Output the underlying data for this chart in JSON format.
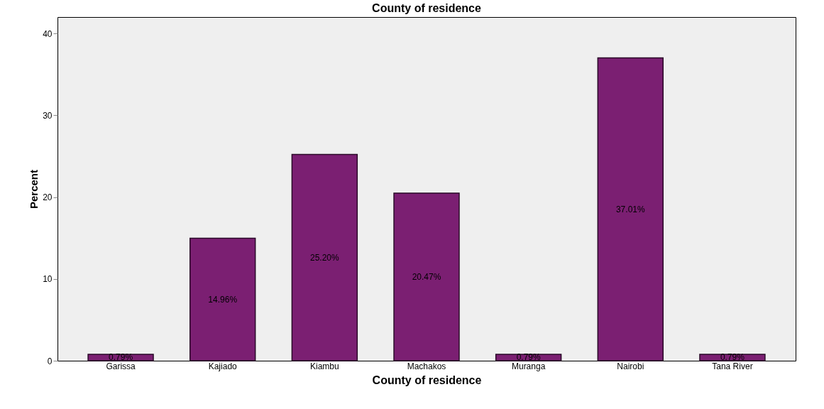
{
  "chart_data": {
    "type": "bar",
    "title": "County of residence",
    "xlabel": "County of residence",
    "ylabel": "Percent",
    "categories": [
      "Garissa",
      "Kajiado",
      "Kiambu",
      "Machakos",
      "Muranga",
      "Nairobi",
      "Tana River"
    ],
    "values": [
      0.79,
      14.96,
      25.2,
      20.47,
      0.79,
      37.01,
      0.79
    ],
    "value_labels": [
      "0.79%",
      "14.96%",
      "25.20%",
      "20.47%",
      "0.79%",
      "37.01%",
      "0.79%"
    ],
    "color": "#7b1f72",
    "ylim": [
      0,
      42
    ],
    "yticks": [
      0,
      10,
      20,
      30,
      40
    ],
    "grid": false
  }
}
